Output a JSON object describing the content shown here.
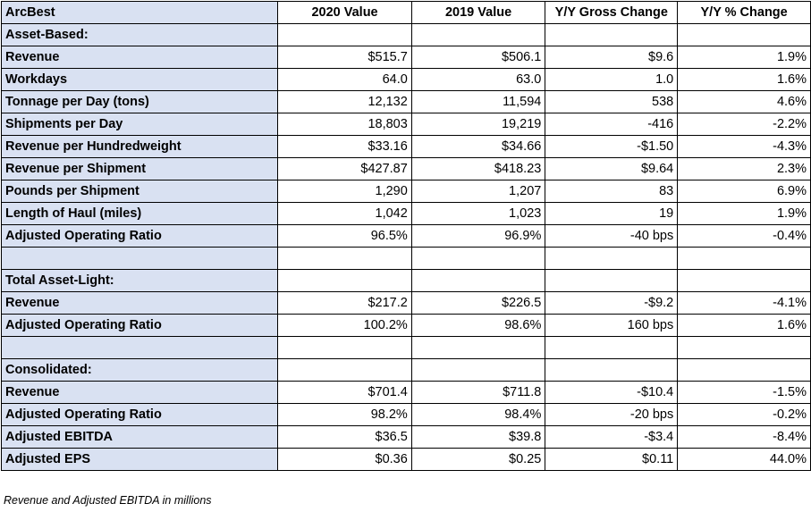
{
  "header": [
    "ArcBest",
    "2020 Value",
    "2019 Value",
    "Y/Y Gross Change",
    "Y/Y % Change"
  ],
  "rows": [
    [
      "Asset-Based:",
      "",
      "",
      "",
      ""
    ],
    [
      "Revenue",
      "$515.7",
      "$506.1",
      "$9.6",
      "1.9%"
    ],
    [
      "Workdays",
      "64.0",
      "63.0",
      "1.0",
      "1.6%"
    ],
    [
      "Tonnage per Day (tons)",
      "12,132",
      "11,594",
      "538",
      "4.6%"
    ],
    [
      "Shipments per Day",
      "18,803",
      "19,219",
      "-416",
      "-2.2%"
    ],
    [
      "Revenue per Hundredweight",
      "$33.16",
      "$34.66",
      "-$1.50",
      "-4.3%"
    ],
    [
      "Revenue per Shipment",
      "$427.87",
      "$418.23",
      "$9.64",
      "2.3%"
    ],
    [
      "Pounds per Shipment",
      "1,290",
      "1,207",
      "83",
      "6.9%"
    ],
    [
      "Length of Haul (miles)",
      "1,042",
      "1,023",
      "19",
      "1.9%"
    ],
    [
      "Adjusted Operating Ratio",
      "96.5%",
      "96.9%",
      "-40 bps",
      "-0.4%"
    ],
    [
      "",
      "",
      "",
      "",
      ""
    ],
    [
      "Total Asset-Light:",
      "",
      "",
      "",
      ""
    ],
    [
      "Revenue",
      "$217.2",
      "$226.5",
      "-$9.2",
      "-4.1%"
    ],
    [
      "Adjusted Operating Ratio",
      "100.2%",
      "98.6%",
      "160 bps",
      "1.6%"
    ],
    [
      "",
      "",
      "",
      "",
      ""
    ],
    [
      "Consolidated:",
      "",
      "",
      "",
      ""
    ],
    [
      "Revenue",
      "$701.4",
      "$711.8",
      "-$10.4",
      "-1.5%"
    ],
    [
      "Adjusted Operating Ratio",
      "98.2%",
      "98.4%",
      "-20 bps",
      "-0.2%"
    ],
    [
      "Adjusted EBITDA",
      "$36.5",
      "$39.8",
      "-$3.4",
      "-8.4%"
    ],
    [
      "Adjusted EPS",
      "$0.36",
      "$0.25",
      "$0.11",
      "44.0%"
    ]
  ],
  "footnote": "Revenue and Adjusted EBITDA in millions",
  "colors": {
    "label_fill": "#d9e1f2",
    "border": "#000000",
    "background": "#ffffff"
  }
}
